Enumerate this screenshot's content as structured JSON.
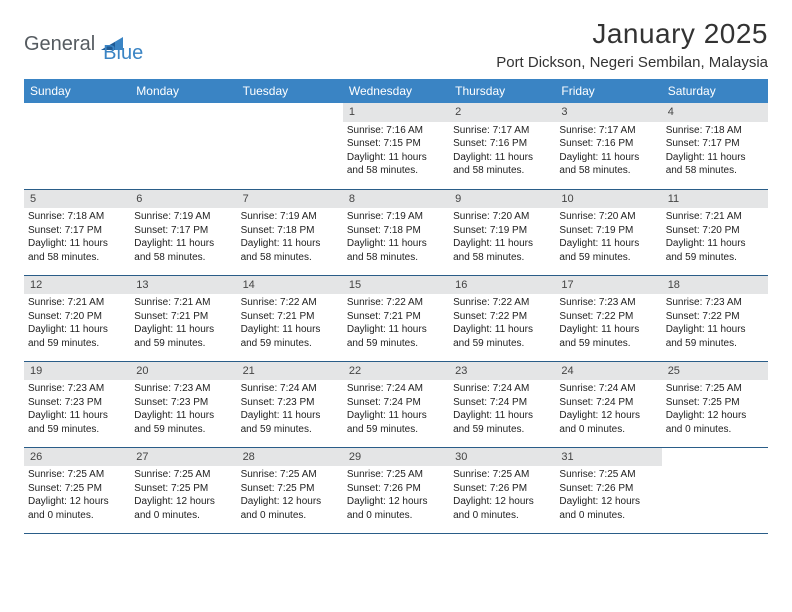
{
  "brand": {
    "part1": "General",
    "part2": "Blue"
  },
  "title": "January 2025",
  "location": "Port Dickson, Negeri Sembilan, Malaysia",
  "colors": {
    "header_bg": "#3a84c4",
    "header_text": "#ffffff",
    "daynum_bg": "#e4e5e6",
    "row_border": "#2a5d88",
    "brand_gray": "#555b60",
    "brand_blue": "#3a84c4"
  },
  "weekdays": [
    "Sunday",
    "Monday",
    "Tuesday",
    "Wednesday",
    "Thursday",
    "Friday",
    "Saturday"
  ],
  "weeks": [
    [
      null,
      null,
      null,
      {
        "n": "1",
        "sr": "7:16 AM",
        "ss": "7:15 PM",
        "dl": "11 hours and 58 minutes."
      },
      {
        "n": "2",
        "sr": "7:17 AM",
        "ss": "7:16 PM",
        "dl": "11 hours and 58 minutes."
      },
      {
        "n": "3",
        "sr": "7:17 AM",
        "ss": "7:16 PM",
        "dl": "11 hours and 58 minutes."
      },
      {
        "n": "4",
        "sr": "7:18 AM",
        "ss": "7:17 PM",
        "dl": "11 hours and 58 minutes."
      }
    ],
    [
      {
        "n": "5",
        "sr": "7:18 AM",
        "ss": "7:17 PM",
        "dl": "11 hours and 58 minutes."
      },
      {
        "n": "6",
        "sr": "7:19 AM",
        "ss": "7:17 PM",
        "dl": "11 hours and 58 minutes."
      },
      {
        "n": "7",
        "sr": "7:19 AM",
        "ss": "7:18 PM",
        "dl": "11 hours and 58 minutes."
      },
      {
        "n": "8",
        "sr": "7:19 AM",
        "ss": "7:18 PM",
        "dl": "11 hours and 58 minutes."
      },
      {
        "n": "9",
        "sr": "7:20 AM",
        "ss": "7:19 PM",
        "dl": "11 hours and 58 minutes."
      },
      {
        "n": "10",
        "sr": "7:20 AM",
        "ss": "7:19 PM",
        "dl": "11 hours and 59 minutes."
      },
      {
        "n": "11",
        "sr": "7:21 AM",
        "ss": "7:20 PM",
        "dl": "11 hours and 59 minutes."
      }
    ],
    [
      {
        "n": "12",
        "sr": "7:21 AM",
        "ss": "7:20 PM",
        "dl": "11 hours and 59 minutes."
      },
      {
        "n": "13",
        "sr": "7:21 AM",
        "ss": "7:21 PM",
        "dl": "11 hours and 59 minutes."
      },
      {
        "n": "14",
        "sr": "7:22 AM",
        "ss": "7:21 PM",
        "dl": "11 hours and 59 minutes."
      },
      {
        "n": "15",
        "sr": "7:22 AM",
        "ss": "7:21 PM",
        "dl": "11 hours and 59 minutes."
      },
      {
        "n": "16",
        "sr": "7:22 AM",
        "ss": "7:22 PM",
        "dl": "11 hours and 59 minutes."
      },
      {
        "n": "17",
        "sr": "7:23 AM",
        "ss": "7:22 PM",
        "dl": "11 hours and 59 minutes."
      },
      {
        "n": "18",
        "sr": "7:23 AM",
        "ss": "7:22 PM",
        "dl": "11 hours and 59 minutes."
      }
    ],
    [
      {
        "n": "19",
        "sr": "7:23 AM",
        "ss": "7:23 PM",
        "dl": "11 hours and 59 minutes."
      },
      {
        "n": "20",
        "sr": "7:23 AM",
        "ss": "7:23 PM",
        "dl": "11 hours and 59 minutes."
      },
      {
        "n": "21",
        "sr": "7:24 AM",
        "ss": "7:23 PM",
        "dl": "11 hours and 59 minutes."
      },
      {
        "n": "22",
        "sr": "7:24 AM",
        "ss": "7:24 PM",
        "dl": "11 hours and 59 minutes."
      },
      {
        "n": "23",
        "sr": "7:24 AM",
        "ss": "7:24 PM",
        "dl": "11 hours and 59 minutes."
      },
      {
        "n": "24",
        "sr": "7:24 AM",
        "ss": "7:24 PM",
        "dl": "12 hours and 0 minutes."
      },
      {
        "n": "25",
        "sr": "7:25 AM",
        "ss": "7:25 PM",
        "dl": "12 hours and 0 minutes."
      }
    ],
    [
      {
        "n": "26",
        "sr": "7:25 AM",
        "ss": "7:25 PM",
        "dl": "12 hours and 0 minutes."
      },
      {
        "n": "27",
        "sr": "7:25 AM",
        "ss": "7:25 PM",
        "dl": "12 hours and 0 minutes."
      },
      {
        "n": "28",
        "sr": "7:25 AM",
        "ss": "7:25 PM",
        "dl": "12 hours and 0 minutes."
      },
      {
        "n": "29",
        "sr": "7:25 AM",
        "ss": "7:26 PM",
        "dl": "12 hours and 0 minutes."
      },
      {
        "n": "30",
        "sr": "7:25 AM",
        "ss": "7:26 PM",
        "dl": "12 hours and 0 minutes."
      },
      {
        "n": "31",
        "sr": "7:25 AM",
        "ss": "7:26 PM",
        "dl": "12 hours and 0 minutes."
      },
      null
    ]
  ],
  "labels": {
    "sunrise": "Sunrise:",
    "sunset": "Sunset:",
    "daylight": "Daylight:"
  }
}
